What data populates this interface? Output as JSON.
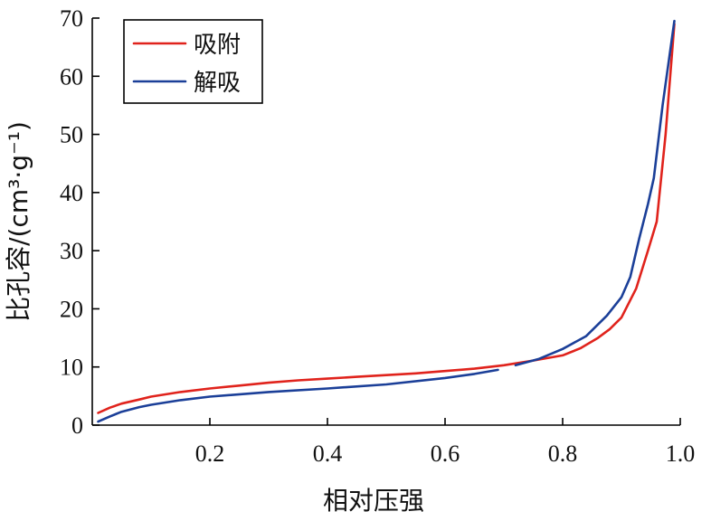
{
  "chart_data": {
    "type": "line",
    "title": "",
    "xlabel": "相对压强",
    "ylabel": "比孔容/(cm³·g⁻¹)",
    "xlim": [
      0.0,
      1.0
    ],
    "ylim": [
      0,
      70
    ],
    "xticks": [
      0.2,
      0.4,
      0.6,
      0.8,
      1.0
    ],
    "xtick_labels": [
      "0.2",
      "0.4",
      "0.6",
      "0.8",
      "1.0"
    ],
    "yticks": [
      0,
      10,
      20,
      30,
      40,
      50,
      60,
      70
    ],
    "ytick_labels": [
      "0",
      "10",
      "20",
      "30",
      "40",
      "50",
      "60",
      "70"
    ],
    "legend_position": "top-left",
    "grid": false,
    "series": [
      {
        "name": "吸附",
        "color": "#e0231c",
        "segments": [
          [
            [
              0.01,
              2.1
            ],
            [
              0.03,
              3.0
            ],
            [
              0.05,
              3.7
            ],
            [
              0.08,
              4.4
            ],
            [
              0.1,
              4.9
            ],
            [
              0.15,
              5.7
            ],
            [
              0.2,
              6.3
            ],
            [
              0.25,
              6.8
            ],
            [
              0.3,
              7.3
            ],
            [
              0.35,
              7.7
            ],
            [
              0.4,
              8.0
            ],
            [
              0.45,
              8.3
            ],
            [
              0.5,
              8.6
            ],
            [
              0.55,
              8.9
            ],
            [
              0.6,
              9.3
            ],
            [
              0.65,
              9.7
            ],
            [
              0.7,
              10.3
            ],
            [
              0.75,
              11.1
            ],
            [
              0.8,
              12.0
            ],
            [
              0.83,
              13.2
            ],
            [
              0.86,
              15.0
            ],
            [
              0.88,
              16.5
            ],
            [
              0.9,
              18.5
            ],
            [
              0.925,
              23.5
            ],
            [
              0.945,
              30.0
            ],
            [
              0.96,
              35.0
            ],
            [
              0.975,
              50.0
            ],
            [
              0.99,
              69.0
            ]
          ]
        ]
      },
      {
        "name": "解吸",
        "color": "#1b3f98",
        "segments": [
          [
            [
              0.01,
              0.6
            ],
            [
              0.03,
              1.5
            ],
            [
              0.05,
              2.3
            ],
            [
              0.08,
              3.1
            ],
            [
              0.1,
              3.5
            ],
            [
              0.15,
              4.3
            ],
            [
              0.2,
              4.9
            ],
            [
              0.3,
              5.7
            ],
            [
              0.4,
              6.3
            ],
            [
              0.5,
              7.0
            ],
            [
              0.6,
              8.1
            ],
            [
              0.65,
              8.8
            ],
            [
              0.69,
              9.5
            ]
          ],
          [
            [
              0.72,
              10.3
            ],
            [
              0.76,
              11.4
            ],
            [
              0.8,
              13.1
            ],
            [
              0.84,
              15.3
            ],
            [
              0.875,
              18.8
            ],
            [
              0.9,
              22.0
            ],
            [
              0.915,
              25.5
            ],
            [
              0.93,
              32.0
            ],
            [
              0.945,
              38.0
            ],
            [
              0.955,
              42.5
            ],
            [
              0.97,
              55.0
            ],
            [
              0.99,
              69.5
            ]
          ]
        ]
      }
    ]
  }
}
